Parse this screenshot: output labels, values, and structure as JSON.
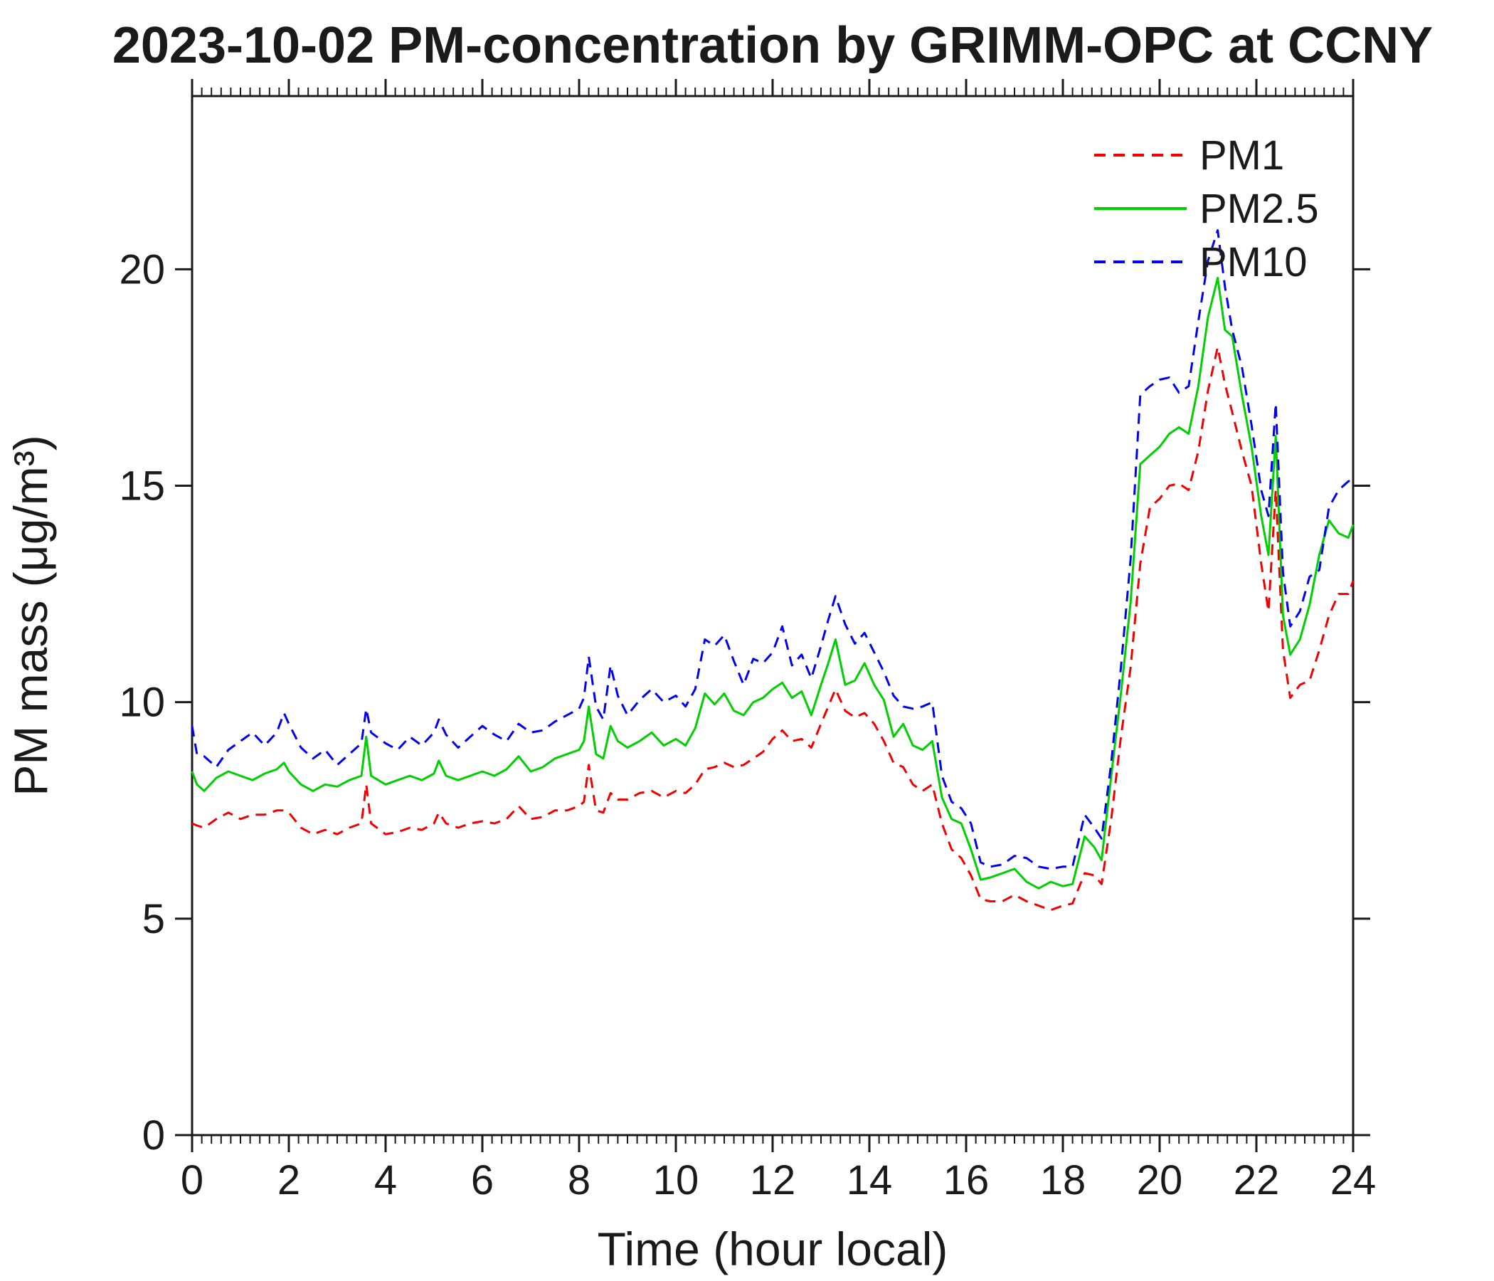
{
  "title": "2023-10-02 PM-concentration by GRIMM-OPC at CCNY",
  "axes": {
    "xlabel": "Time (hour local)",
    "ylabel": "PM mass (μg/m³)"
  },
  "chart_data": {
    "type": "line",
    "title": "2023-10-02 PM-concentration by GRIMM-OPC at CCNY",
    "xlabel": "Time (hour local)",
    "ylabel": "PM mass (μg/m³)",
    "xlim": [
      0,
      24
    ],
    "ylim": [
      0,
      24
    ],
    "x_ticks": [
      0,
      2,
      4,
      6,
      8,
      10,
      12,
      14,
      16,
      18,
      20,
      22,
      24
    ],
    "y_ticks": [
      0,
      5,
      10,
      15,
      20
    ],
    "x_minor_tick_step": 0.2,
    "grid": false,
    "legend_position": "top-right",
    "x": [
      0,
      0.1,
      0.25,
      0.5,
      0.75,
      1,
      1.25,
      1.5,
      1.75,
      1.9,
      2,
      2.25,
      2.5,
      2.75,
      3,
      3.25,
      3.5,
      3.6,
      3.7,
      4,
      4.25,
      4.5,
      4.75,
      5,
      5.1,
      5.25,
      5.5,
      5.75,
      6,
      6.25,
      6.5,
      6.75,
      7,
      7.25,
      7.5,
      7.75,
      8,
      8.1,
      8.2,
      8.35,
      8.5,
      8.65,
      8.8,
      9,
      9.25,
      9.5,
      9.75,
      10,
      10.2,
      10.4,
      10.6,
      10.8,
      11,
      11.2,
      11.4,
      11.6,
      11.8,
      12,
      12.2,
      12.4,
      12.6,
      12.8,
      13,
      13.15,
      13.3,
      13.5,
      13.7,
      13.9,
      14.1,
      14.3,
      14.5,
      14.7,
      14.9,
      15.1,
      15.3,
      15.5,
      15.7,
      15.9,
      16.1,
      16.3,
      16.5,
      16.75,
      17,
      17.25,
      17.5,
      17.75,
      18,
      18.2,
      18.45,
      18.65,
      18.8,
      19,
      19.2,
      19.4,
      19.6,
      19.8,
      20,
      20.2,
      20.4,
      20.6,
      20.8,
      21,
      21.2,
      21.35,
      21.5,
      21.7,
      21.9,
      22.1,
      22.25,
      22.4,
      22.55,
      22.7,
      22.9,
      23.1,
      23.3,
      23.5,
      23.7,
      23.9,
      24
    ],
    "series": [
      {
        "name": "PM1",
        "color": "#f20000",
        "style": "dashed",
        "values": [
          7.2,
          7.15,
          7.1,
          7.3,
          7.45,
          7.3,
          7.4,
          7.4,
          7.5,
          7.5,
          7.45,
          7.1,
          6.95,
          7.05,
          6.95,
          7.1,
          7.2,
          8.1,
          7.2,
          6.95,
          7.0,
          7.1,
          7.05,
          7.2,
          7.45,
          7.2,
          7.1,
          7.2,
          7.25,
          7.2,
          7.3,
          7.6,
          7.3,
          7.35,
          7.5,
          7.5,
          7.6,
          7.7,
          8.55,
          7.5,
          7.45,
          7.9,
          7.75,
          7.75,
          7.9,
          7.95,
          7.8,
          7.95,
          7.9,
          8.1,
          8.45,
          8.5,
          8.6,
          8.5,
          8.55,
          8.7,
          8.85,
          9.15,
          9.35,
          9.1,
          9.15,
          8.95,
          9.5,
          9.9,
          10.3,
          9.8,
          9.65,
          9.75,
          9.5,
          9.1,
          8.6,
          8.5,
          8.1,
          7.95,
          8.1,
          7.2,
          6.6,
          6.4,
          6.0,
          5.45,
          5.4,
          5.4,
          5.55,
          5.4,
          5.3,
          5.2,
          5.3,
          5.35,
          6.05,
          6.0,
          5.8,
          7.3,
          9.2,
          10.8,
          13.2,
          14.5,
          14.7,
          15.0,
          15.05,
          14.9,
          15.8,
          17.2,
          18.2,
          17.35,
          16.7,
          15.8,
          15.0,
          13.2,
          12.1,
          14.9,
          11.2,
          10.1,
          10.4,
          10.5,
          11.2,
          12.0,
          12.5,
          12.5,
          12.8
        ]
      },
      {
        "name": "PM2.5",
        "color": "#00cf00",
        "style": "solid",
        "values": [
          8.4,
          8.1,
          7.95,
          8.25,
          8.4,
          8.3,
          8.2,
          8.35,
          8.45,
          8.6,
          8.4,
          8.1,
          7.95,
          8.1,
          8.05,
          8.2,
          8.3,
          9.2,
          8.3,
          8.1,
          8.2,
          8.3,
          8.2,
          8.35,
          8.65,
          8.3,
          8.2,
          8.3,
          8.4,
          8.3,
          8.45,
          8.75,
          8.4,
          8.5,
          8.7,
          8.8,
          8.9,
          9.1,
          9.9,
          8.8,
          8.7,
          9.45,
          9.1,
          8.95,
          9.1,
          9.3,
          9.0,
          9.15,
          9.0,
          9.4,
          10.2,
          9.95,
          10.2,
          9.8,
          9.7,
          10.0,
          10.1,
          10.3,
          10.45,
          10.1,
          10.25,
          9.7,
          10.4,
          10.9,
          11.45,
          10.4,
          10.5,
          10.9,
          10.4,
          10.05,
          9.2,
          9.5,
          9.0,
          8.9,
          9.1,
          7.8,
          7.3,
          7.2,
          6.6,
          5.9,
          5.95,
          6.05,
          6.15,
          5.85,
          5.7,
          5.85,
          5.75,
          5.8,
          6.9,
          6.65,
          6.35,
          8.3,
          10.2,
          12.3,
          15.5,
          15.7,
          15.9,
          16.2,
          16.35,
          16.2,
          17.3,
          18.9,
          19.8,
          18.6,
          18.45,
          17.1,
          15.9,
          14.3,
          13.4,
          16.15,
          12.0,
          11.1,
          11.45,
          12.25,
          13.4,
          14.2,
          13.9,
          13.8,
          14.1
        ]
      },
      {
        "name": "PM10",
        "color": "#0000f2",
        "style": "dashed",
        "values": [
          9.45,
          8.8,
          8.75,
          8.5,
          8.9,
          9.1,
          9.3,
          9.0,
          9.3,
          9.75,
          9.5,
          8.95,
          8.7,
          8.9,
          8.55,
          8.8,
          9.05,
          9.85,
          9.3,
          9.05,
          8.9,
          9.2,
          9.0,
          9.3,
          9.6,
          9.25,
          8.95,
          9.2,
          9.45,
          9.25,
          9.1,
          9.5,
          9.3,
          9.35,
          9.55,
          9.7,
          9.85,
          10.1,
          11.05,
          9.9,
          9.6,
          10.85,
          10.15,
          9.7,
          10.05,
          10.3,
          10.0,
          10.15,
          9.9,
          10.3,
          11.45,
          11.3,
          11.55,
          10.95,
          10.4,
          11.0,
          10.9,
          11.15,
          11.75,
          10.85,
          11.1,
          10.55,
          11.3,
          11.9,
          12.45,
          11.8,
          11.35,
          11.6,
          11.15,
          10.7,
          10.15,
          9.9,
          9.85,
          9.9,
          10.0,
          8.3,
          7.7,
          7.55,
          7.2,
          6.3,
          6.2,
          6.25,
          6.45,
          6.4,
          6.2,
          6.15,
          6.2,
          6.2,
          7.4,
          7.1,
          6.85,
          8.6,
          10.8,
          13.3,
          17.1,
          17.3,
          17.45,
          17.5,
          17.15,
          17.3,
          18.8,
          20.2,
          20.9,
          19.6,
          18.6,
          17.75,
          16.4,
          14.9,
          14.3,
          16.9,
          13.0,
          11.75,
          12.1,
          12.9,
          13.05,
          14.5,
          14.9,
          15.1,
          15.15
        ]
      }
    ]
  }
}
